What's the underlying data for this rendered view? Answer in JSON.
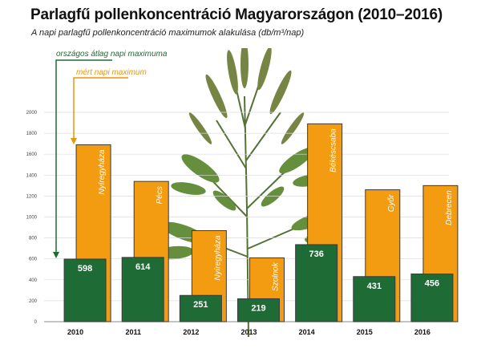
{
  "title": "Parlagfű pollenkoncentráció Magyarországon (2010–2016)",
  "subtitle": "A napi parlagfű pollenkoncentráció maximumok alakulása (db/m³/nap)",
  "legend": {
    "national_avg": "országos átlag napi maximuma",
    "measured_max": "mért napi maximum"
  },
  "colors": {
    "green": "#1f6b35",
    "orange": "#f39c12",
    "green_legend": "#1f6b35",
    "orange_legend": "#e8960c"
  },
  "chart_data": {
    "type": "bar",
    "categories": [
      "2010",
      "2011",
      "2012",
      "2013",
      "2014",
      "2015",
      "2016"
    ],
    "series": [
      {
        "name": "mért napi maximum",
        "values": [
          1690,
          1340,
          870,
          610,
          1890,
          1260,
          1300
        ],
        "labels": [
          "Nyíregyháza",
          "Pécs",
          "Nyíregyháza",
          "Szolnok",
          "Békéscsaba",
          "Győr",
          "Debrecen"
        ]
      },
      {
        "name": "országos átlag napi maximuma",
        "values": [
          598,
          614,
          251,
          219,
          736,
          431,
          456
        ],
        "labels": [
          "598",
          "614",
          "251",
          "219",
          "736",
          "431",
          "456"
        ]
      }
    ],
    "yticks": [
      "0",
      "200",
      "400",
      "600",
      "800",
      "1000",
      "1200",
      "1400",
      "1600",
      "1800",
      "2000"
    ],
    "ylim": [
      0,
      2000
    ],
    "grid": true
  }
}
